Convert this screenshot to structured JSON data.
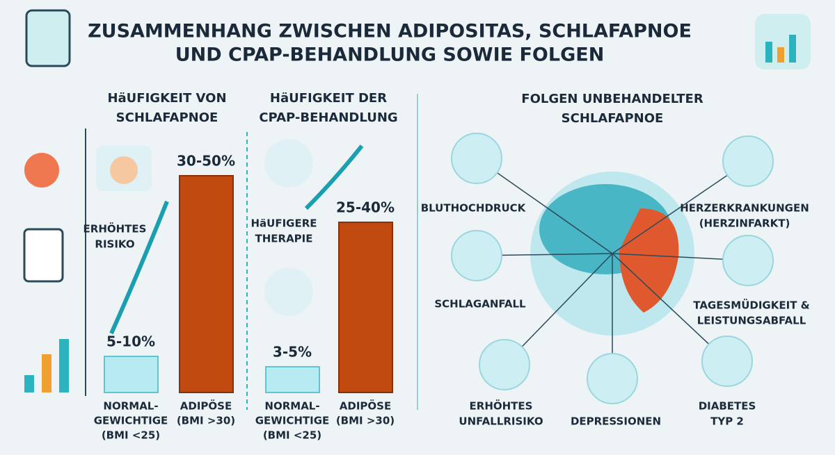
{
  "header": {
    "title_lines": [
      "ZUSAMMENHANG ZWISCHEN ADIPOSITAS, SCHLAFAPNOE",
      "UND CPAP-BEHANDLUNG SOWIE FOLGEN"
    ]
  },
  "panel_apnea": {
    "title_lines": [
      "HäUFIGKEIT VON",
      "SCHLAFAPNOE"
    ],
    "note_lines": [
      "ERHÖHTES",
      "RISIKO"
    ],
    "bars": [
      {
        "label": "5-10%",
        "category_lines": [
          "NORMAL-",
          "GEWICHTIGE",
          "(BMI <25)"
        ]
      },
      {
        "label": "30-50%",
        "category_lines": [
          "ADIPÖSE",
          "(BMI >30)"
        ]
      }
    ]
  },
  "panel_cpap": {
    "title_lines": [
      "HäUFIGKEIT DER",
      "CPAP-BEHANDLUNG"
    ],
    "note_lines": [
      "HäUFIGERE",
      "THERAPIE"
    ],
    "bars": [
      {
        "label": "3-5%",
        "category_lines": [
          "NORMAL-",
          "GEWICHTIGE",
          "(BMI <25)"
        ]
      },
      {
        "label": "25-40%",
        "category_lines": [
          "ADIPÖSE",
          "(BMI >30)"
        ]
      }
    ]
  },
  "consequences": {
    "title_lines": [
      "FOLGEN UNBEHANDELTER",
      "SCHLAFAPNOE"
    ],
    "nodes": [
      {
        "label_lines": [
          "BLUTHOCHDRUCK"
        ]
      },
      {
        "label_lines": [
          "HERZERKRANKUNGEN",
          "(HERZINFARKT)"
        ]
      },
      {
        "label_lines": [
          "SCHLAGANFALL"
        ]
      },
      {
        "label_lines": [
          "TAGESMÜDIGKEIT &",
          "LEISTUNGSABFALL"
        ]
      },
      {
        "label_lines": [
          "ERHÖHTES",
          "UNFALLRISIKO"
        ]
      },
      {
        "label_lines": [
          "DEPRESSIONEN"
        ]
      },
      {
        "label_lines": [
          "DIABETES",
          "TYP 2"
        ]
      }
    ]
  }
}
